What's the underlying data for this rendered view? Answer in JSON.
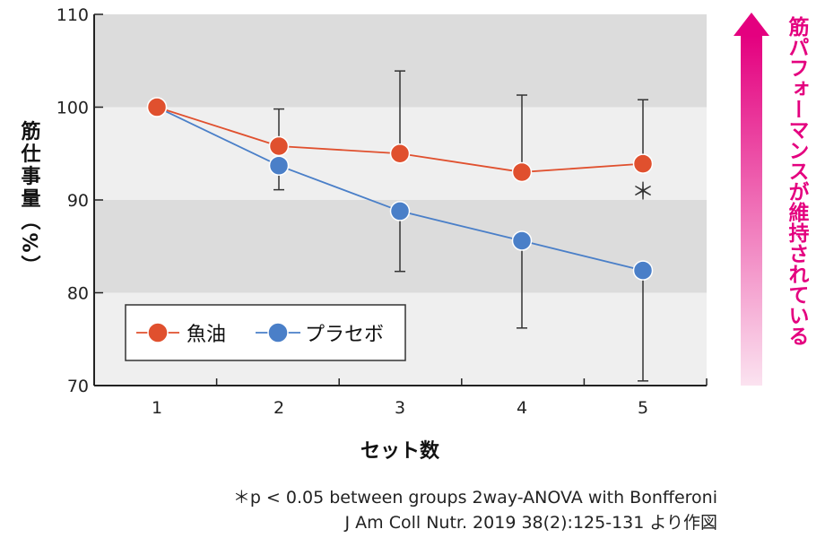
{
  "chart_data": {
    "type": "line",
    "categories": [
      "1",
      "2",
      "3",
      "4",
      "5"
    ],
    "xlabel": "セット数",
    "ylabel": "筋仕事量（%）",
    "ylim": [
      70,
      110
    ],
    "yticks": [
      "70",
      "80",
      "90",
      "100",
      "110"
    ],
    "series": [
      {
        "name": "魚油",
        "color": "#e0502e",
        "values": [
          100,
          95.8,
          95.0,
          93.0,
          93.9
        ],
        "err_low": [
          100,
          95.8,
          95.0,
          93.0,
          93.9
        ],
        "err_high": [
          100,
          99.8,
          103.9,
          101.3,
          100.8
        ]
      },
      {
        "name": "プラセボ",
        "color": "#4a7fc8",
        "values": [
          100,
          93.7,
          88.8,
          85.6,
          82.4
        ],
        "err_low": [
          100,
          91.1,
          82.3,
          76.2,
          70.5
        ],
        "err_high": [
          100,
          93.7,
          88.8,
          85.6,
          82.4
        ]
      }
    ],
    "annotation": "＊",
    "arrow_label": "筋パフォーマンスが維持されている",
    "arrow_color": "#e4007f",
    "band_colors": [
      "#dcdcdc",
      "#efefef"
    ],
    "grid": false,
    "legend_position": "bottom-left"
  },
  "footnote": "＊p < 0.05 between groups 2way-ANOVA with Bonfferoni",
  "source": "J Am Coll Nutr. 2019 38(2):125-131 より作図"
}
